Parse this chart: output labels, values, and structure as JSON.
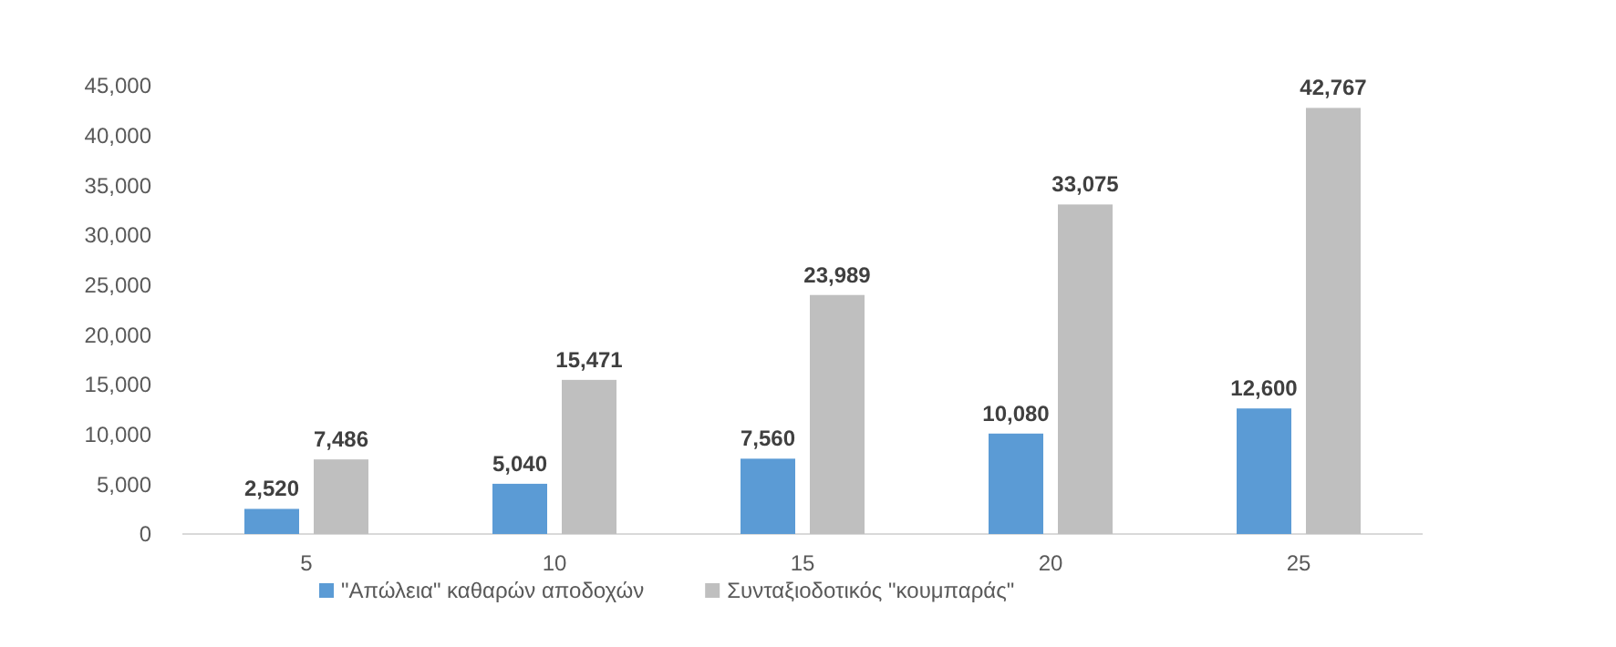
{
  "chart_data": {
    "type": "bar",
    "categories": [
      "5",
      "10",
      "15",
      "20",
      "25"
    ],
    "series": [
      {
        "name": "\"Απώλεια\" καθαρών αποδοχών",
        "color": "#5b9bd5",
        "values": [
          2520,
          5040,
          7560,
          10080,
          12600
        ],
        "value_labels": [
          "2,520",
          "5,040",
          "7,560",
          "10,080",
          "12,600"
        ]
      },
      {
        "name": "Συνταξιοδοτικός \"κουμπαράς\"",
        "color": "#bfbfbf",
        "values": [
          7486,
          15471,
          23989,
          33075,
          42767
        ],
        "value_labels": [
          "7,486",
          "15,471",
          "23,989",
          "33,075",
          "42,767"
        ]
      }
    ],
    "ylim": [
      0,
      45000
    ],
    "yticks": [
      0,
      {
        "value": 5000,
        "label": "5,000"
      },
      {
        "value": 10000,
        "label": "10,000"
      },
      {
        "value": 15000,
        "label": "15,000"
      },
      {
        "value": 20000,
        "label": "20,000"
      },
      {
        "value": 25000,
        "label": "25,000"
      },
      {
        "value": 30000,
        "label": "30,000"
      },
      {
        "value": 35000,
        "label": "35,000"
      },
      {
        "value": 40000,
        "label": "40,000"
      },
      {
        "value": 45000,
        "label": "45,000"
      }
    ],
    "grid": false,
    "legend": "bottom"
  }
}
